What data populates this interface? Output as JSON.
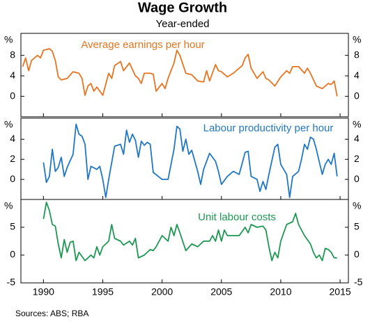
{
  "title": "Wage Growth",
  "subtitle": "Year-ended",
  "source": "Sources:   ABS; RBA",
  "chart_data": [
    {
      "type": "line",
      "name": "Average earnings per hour",
      "color": "#e8731e",
      "ylabel": "%",
      "x": [
        1988.25,
        1988.5,
        1988.75,
        1989,
        1989.5,
        1989.75,
        1990,
        1990.5,
        1990.75,
        1991,
        1991.25,
        1991.5,
        1992,
        1992.5,
        1993,
        1993.25,
        1993.5,
        1993.75,
        1994,
        1994.25,
        1994.5,
        1995,
        1995.5,
        1995.75,
        1996,
        1996.5,
        1996.75,
        1997.25,
        1997.75,
        1998,
        1998.25,
        1998.5,
        1999,
        1999.25,
        1999.5,
        2000,
        2000.25,
        2000.5,
        2001,
        2001.25,
        2001.5,
        2002,
        2002.5,
        2003,
        2003.5,
        2003.75,
        2004,
        2004.5,
        2004.75,
        2005,
        2005.5,
        2006,
        2006.5,
        2006.75,
        2007,
        2007.25,
        2007.5,
        2008,
        2008.5,
        2008.75,
        2009,
        2009.5,
        2010,
        2010.5,
        2010.75,
        2011,
        2011.5,
        2012,
        2012.25,
        2012.5,
        2013,
        2013.5,
        2014,
        2014.25,
        2014.5,
        2014.75
      ],
      "values": [
        5.8,
        7.5,
        5,
        7,
        8,
        7.5,
        9,
        9.3,
        8.8,
        7,
        3.8,
        3.2,
        3.5,
        4.8,
        4.5,
        3.5,
        0.2,
        2,
        2.5,
        1,
        1.8,
        0.2,
        4.5,
        3.5,
        6,
        6.8,
        5,
        6.5,
        4,
        3.5,
        2.5,
        4.5,
        4.5,
        4.3,
        1,
        2.5,
        1.5,
        3.5,
        6.5,
        9,
        8,
        4.5,
        4.2,
        3,
        2.8,
        5,
        3,
        6.2,
        5,
        4.8,
        3.8,
        4.5,
        5.5,
        6,
        7.5,
        8.2,
        5.5,
        3.5,
        4.8,
        3.5,
        3.2,
        2,
        3.8,
        5,
        4.5,
        5.8,
        5.8,
        4.5,
        5.5,
        4.5,
        2,
        1.5,
        2.5,
        2.3,
        3,
        0
      ],
      "xlim": [
        1988.1,
        2015.7
      ],
      "xticks": [
        1990,
        1995,
        2000,
        2005,
        2010,
        2015
      ],
      "ylim": [
        -4,
        12.3
      ],
      "yticks": [
        0,
        4,
        8
      ]
    },
    {
      "type": "line",
      "name": "Labour productivity per hour",
      "color": "#1f77c4",
      "ylabel": "%",
      "x": [
        1990,
        1990.25,
        1990.5,
        1990.75,
        1991,
        1991.25,
        1991.5,
        1991.75,
        1992,
        1992.5,
        1992.75,
        1993,
        1993.25,
        1993.5,
        1993.75,
        1994,
        1994.5,
        1994.75,
        1995,
        1995.25,
        1995.5,
        1996,
        1996.5,
        1996.75,
        1997,
        1997.25,
        1997.5,
        1997.75,
        1998,
        1998.25,
        1998.5,
        1998.75,
        1999,
        1999.25,
        2000,
        2000.5,
        2001,
        2001.25,
        2001.5,
        2001.75,
        2002,
        2002.25,
        2002.5,
        2003,
        2003.25,
        2003.5,
        2004,
        2004.5,
        2004.75,
        2005,
        2005.5,
        2006,
        2006.5,
        2007,
        2007.25,
        2007.5,
        2008,
        2008.25,
        2008.5,
        2008.75,
        2009,
        2009.5,
        2009.75,
        2010,
        2010.5,
        2010.75,
        2011,
        2011.5,
        2011.75,
        2012,
        2012.25,
        2012.5,
        2012.75,
        2013,
        2013.5,
        2013.75,
        2014,
        2014.25,
        2014.5,
        2014.75
      ],
      "values": [
        1.7,
        -0.3,
        0.3,
        3,
        0.8,
        1.2,
        2.2,
        0.3,
        1.2,
        2.5,
        5.5,
        4.5,
        4.3,
        3.5,
        0,
        1.3,
        1,
        1.3,
        0,
        -1.8,
        0,
        3.3,
        3.5,
        2.5,
        4.9,
        3.7,
        4.5,
        3.9,
        2.2,
        3.8,
        3.4,
        3.7,
        3.5,
        0.7,
        0,
        0,
        3,
        5.3,
        5,
        2.8,
        4,
        2.5,
        2.9,
        0.8,
        -0.5,
        1,
        2.6,
        1.8,
        0.8,
        -0.5,
        0.3,
        0.8,
        0.5,
        2.7,
        2.8,
        0.3,
        0,
        -1.2,
        -0.2,
        -1,
        0.5,
        3.2,
        3.5,
        1.5,
        0.5,
        -1.8,
        0.3,
        0.8,
        2,
        3.5,
        3,
        4.2,
        4,
        3,
        0.5,
        1.5,
        2,
        1.5,
        2.6,
        0.3
      ],
      "xlim": [
        1988.1,
        2015.7
      ],
      "xticks": [
        1990,
        1995,
        2000,
        2005,
        2010,
        2015
      ],
      "ylim": [
        -2,
        6.1
      ],
      "yticks": [
        0,
        2,
        4
      ]
    },
    {
      "type": "line",
      "name": "Unit labour costs",
      "color": "#1a9850",
      "ylabel": "%",
      "x": [
        1990,
        1990.25,
        1990.5,
        1990.75,
        1991,
        1991.25,
        1991.5,
        1991.75,
        1992,
        1992.25,
        1992.5,
        1992.75,
        1993,
        1993.5,
        1994,
        1994.25,
        1994.5,
        1994.75,
        1995,
        1995.5,
        1995.75,
        1996,
        1996.5,
        1996.75,
        1997.25,
        1997.5,
        1997.75,
        1998,
        1998.5,
        1999,
        1999.25,
        1999.5,
        1999.75,
        2000,
        2000.5,
        2000.75,
        2001,
        2001.25,
        2001.5,
        2002,
        2002.5,
        2003,
        2003.5,
        2004,
        2004.25,
        2004.5,
        2004.75,
        2005,
        2005.25,
        2005.5,
        2006,
        2006.5,
        2007,
        2007.25,
        2007.5,
        2008,
        2008.5,
        2008.75,
        2009,
        2009.25,
        2009.5,
        2009.75,
        2010,
        2010.5,
        2011,
        2011.25,
        2011.5,
        2012,
        2012.5,
        2012.75,
        2013,
        2013.25,
        2013.5,
        2013.75,
        2014,
        2014.25,
        2014.5,
        2014.75
      ],
      "values": [
        6.5,
        9.5,
        8,
        5.5,
        5.2,
        2,
        -0.5,
        2.8,
        0.5,
        2.3,
        2.5,
        -1,
        0.5,
        -1,
        0,
        -0.5,
        1.5,
        0,
        1.5,
        2.5,
        5.5,
        3,
        2.5,
        1.8,
        2.5,
        1.8,
        3,
        -0.5,
        0,
        1,
        0.8,
        1.5,
        2.5,
        3.5,
        2.5,
        5,
        3.5,
        5.5,
        4,
        0.8,
        2,
        1.5,
        2.5,
        2.5,
        3.5,
        2.5,
        4.5,
        2.5,
        4.5,
        3.5,
        3.5,
        3.5,
        5,
        4,
        5.5,
        5,
        5.2,
        4.5,
        1.5,
        -1,
        0.5,
        -0.5,
        2.5,
        5.5,
        6,
        7.5,
        5.5,
        3.5,
        2,
        0.5,
        -0.5,
        0,
        -1,
        1.2,
        1,
        0.5,
        -0.5,
        -0.5
      ],
      "xlim": [
        1988.1,
        2015.7
      ],
      "xticks": [
        1990,
        1995,
        2000,
        2005,
        2010,
        2015
      ],
      "ylim": [
        -5,
        10
      ],
      "yticks": [
        -5,
        0,
        5
      ]
    }
  ]
}
